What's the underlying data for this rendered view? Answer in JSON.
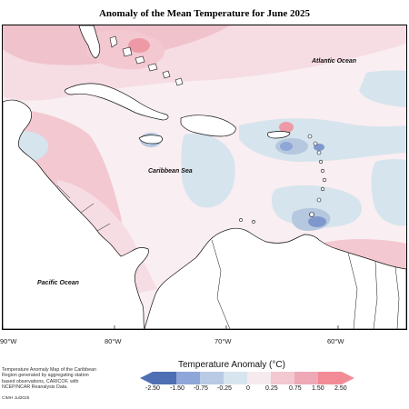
{
  "title": "Anomaly of the Mean Temperature for June 2025",
  "labels": {
    "atlantic": "Atlantic Ocean",
    "caribbean": "Caribbean Sea",
    "pacific": "Pacific Ocean"
  },
  "longitudes": [
    "90°W",
    "80°W",
    "70°W",
    "60°W"
  ],
  "legend": {
    "title": "Temperature Anomaly (°C)",
    "ticks": [
      "-2.50",
      "-1.50",
      "-0.75",
      "-0.25",
      "0",
      "0.25",
      "0.75",
      "1.50",
      "2.50"
    ],
    "colors": [
      "#4f6fb4",
      "#8ea6d8",
      "#b9cbe4",
      "#d7e5ee",
      "#f6eaef",
      "#f3c8d1",
      "#eea9b6",
      "#f38b96"
    ]
  },
  "footnote": "Temperature Anomaly Map of the Caribbean Region generated by aggregating station based observations, CARICOF, with NCEP/NCAR Reanalysis Data.",
  "credit": "CIMH Jul2025",
  "map_colors": {
    "land": "#ffffff",
    "blue_weak": "#d6e4ed",
    "blue_mid": "#b5c8df",
    "blue_strong": "#7f98cc",
    "pink_faint": "#f9eef1",
    "pink_light": "#f6dce3",
    "pink_mid": "#efc2cc",
    "pink_strong": "#ee9aa6",
    "coast": "#111111"
  }
}
